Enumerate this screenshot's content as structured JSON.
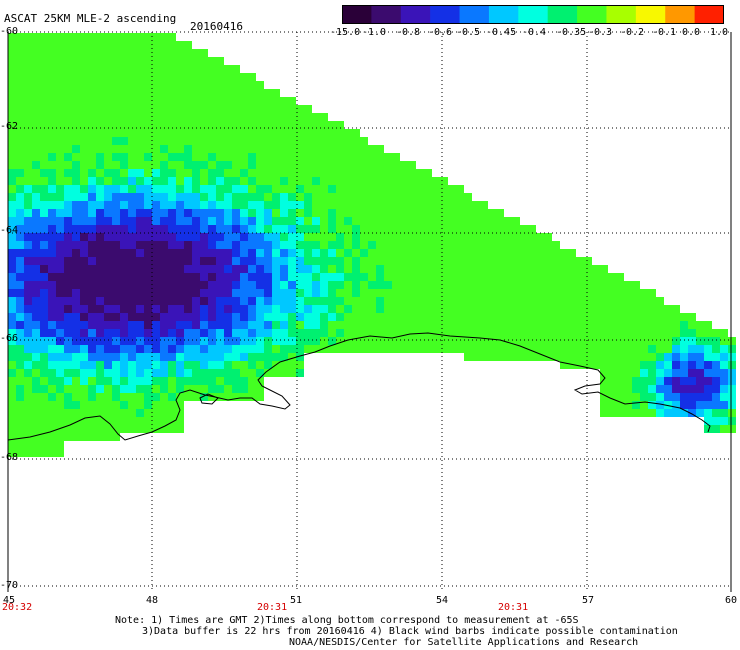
{
  "header": {
    "title": "ASCAT 25KM MLE-2 ascending",
    "date": "20160416"
  },
  "colorbar": {
    "labels": [
      "-15.0",
      "-1.0",
      "-0.8",
      "-0.6",
      "-0.5",
      "-0.45",
      "-0.4",
      "-0.35",
      "-0.3",
      "-0.2",
      "-0.1",
      "0.0",
      "1.0"
    ],
    "colors": [
      "#2a0038",
      "#3b0b6e",
      "#3a14b8",
      "#1430e6",
      "#0a78ff",
      "#00c8ff",
      "#00ffe0",
      "#00f070",
      "#44ff22",
      "#a8ff00",
      "#f8f800",
      "#ff9800",
      "#ff2000"
    ]
  },
  "axes": {
    "x_ticks": [
      "45",
      "48",
      "51",
      "54",
      "57",
      "60"
    ],
    "y_ticks": [
      "-60",
      "-62",
      "-64",
      "-66",
      "-68",
      "-70"
    ],
    "time_labels": [
      "20:32",
      "20:31",
      "20:31"
    ],
    "lon_range": [
      45,
      60
    ],
    "lat_range": [
      -70,
      -60
    ],
    "grid": true
  },
  "footer": {
    "line1": "Note: 1) Times are GMT 2)Times along bottom correspond to measurement at -65S",
    "line2": "3)Data buffer is 22 hrs from 20160416 4) Black wind barbs indicate possible contamination",
    "line3": "NOAA/NESDIS/Center for Satellite Applications and Research"
  }
}
